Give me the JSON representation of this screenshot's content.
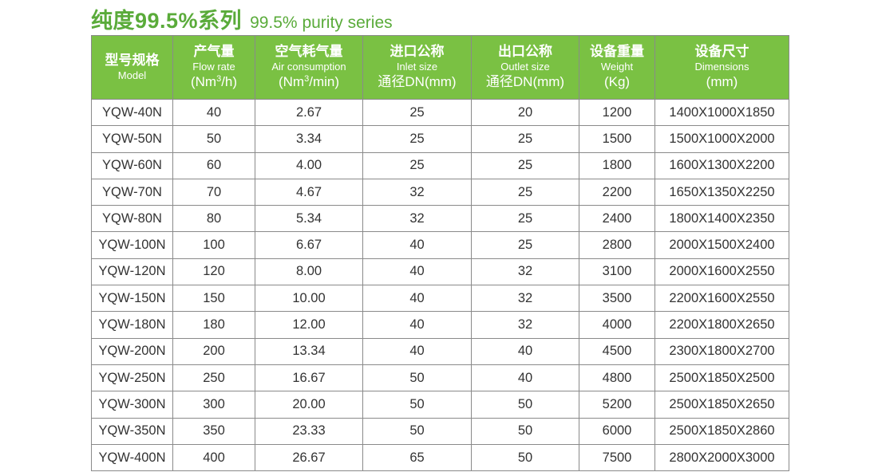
{
  "title": {
    "cn": "纯度99.5%系列",
    "en": "99.5% purity series"
  },
  "columns": [
    {
      "cn": "型号规格",
      "en": "Model",
      "unit": ""
    },
    {
      "cn": "产气量",
      "en": "Flow rate",
      "unit_pre": "(Nm",
      "unit_sup": "3",
      "unit_post": "/h)"
    },
    {
      "cn": "空气耗气量",
      "en": "Air consumption",
      "unit_pre": "(Nm",
      "unit_sup": "3",
      "unit_post": "/min)"
    },
    {
      "cn": "进口公称",
      "en": "Inlet size",
      "unit": "通径DN(mm)"
    },
    {
      "cn": "出口公称",
      "en": "Outlet size",
      "unit": "通径DN(mm)"
    },
    {
      "cn": "设备重量",
      "en": "Weight",
      "unit": "(Kg)"
    },
    {
      "cn": "设备尺寸",
      "en": "Dimensions",
      "unit": "(mm)"
    }
  ],
  "rows": [
    [
      "YQW-40N",
      "40",
      "2.67",
      "25",
      "20",
      "1200",
      "1400X1000X1850"
    ],
    [
      "YQW-50N",
      "50",
      "3.34",
      "25",
      "25",
      "1500",
      "1500X1000X2000"
    ],
    [
      "YQW-60N",
      "60",
      "4.00",
      "25",
      "25",
      "1800",
      "1600X1300X2200"
    ],
    [
      "YQW-70N",
      "70",
      "4.67",
      "32",
      "25",
      "2200",
      "1650X1350X2250"
    ],
    [
      "YQW-80N",
      "80",
      "5.34",
      "32",
      "25",
      "2400",
      "1800X1400X2350"
    ],
    [
      "YQW-100N",
      "100",
      "6.67",
      "40",
      "25",
      "2800",
      "2000X1500X2400"
    ],
    [
      "YQW-120N",
      "120",
      "8.00",
      "40",
      "32",
      "3100",
      "2000X1600X2550"
    ],
    [
      "YQW-150N",
      "150",
      "10.00",
      "40",
      "32",
      "3500",
      "2200X1600X2550"
    ],
    [
      "YQW-180N",
      "180",
      "12.00",
      "40",
      "32",
      "4000",
      "2200X1800X2650"
    ],
    [
      "YQW-200N",
      "200",
      "13.34",
      "40",
      "40",
      "4500",
      "2300X1800X2700"
    ],
    [
      "YQW-250N",
      "250",
      "16.67",
      "50",
      "40",
      "4800",
      "2500X1850X2500"
    ],
    [
      "YQW-300N",
      "300",
      "20.00",
      "50",
      "50",
      "5200",
      "2500X1850X2650"
    ],
    [
      "YQW-350N",
      "350",
      "23.33",
      "50",
      "50",
      "6000",
      "2500X1850X2860"
    ],
    [
      "YQW-400N",
      "400",
      "26.67",
      "65",
      "50",
      "7500",
      "2800X2000X3000"
    ]
  ],
  "colors": {
    "accent": "#5aab3a",
    "header_bg": "#7ac143",
    "border": "#8a8a8a",
    "text": "#333333"
  }
}
